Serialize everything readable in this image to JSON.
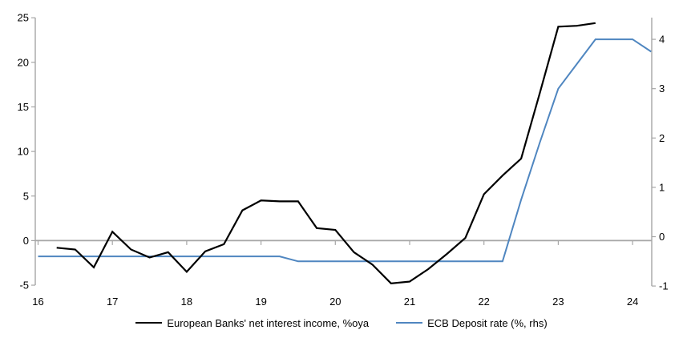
{
  "chart_data": {
    "type": "line",
    "title": "",
    "grid": "horizontal-zero-line-only",
    "legend_position": "bottom-center",
    "x_axis": {
      "ticks": [
        16,
        17,
        18,
        19,
        20,
        21,
        22,
        23,
        24
      ],
      "range": [
        15.96,
        24.26
      ]
    },
    "left_axis": {
      "ticks": [
        25,
        20,
        15,
        10,
        5,
        0,
        -5
      ],
      "range": [
        -5,
        25
      ]
    },
    "right_axis": {
      "ticks": [
        4,
        3,
        2,
        1,
        0,
        -1
      ],
      "range": [
        -1,
        4.45
      ]
    },
    "series": [
      {
        "name": "European Banks' net interest income, %oya",
        "axis": "left",
        "color": "#000000",
        "x": [
          16.25,
          16.5,
          16.75,
          17.0,
          17.25,
          17.5,
          17.75,
          18.0,
          18.25,
          18.5,
          18.75,
          19.0,
          19.25,
          19.5,
          19.75,
          20.0,
          20.25,
          20.5,
          20.75,
          21.0,
          21.25,
          21.5,
          21.75,
          22.0,
          22.25,
          22.5,
          22.75,
          23.0,
          23.25,
          23.5
        ],
        "values": [
          -0.8,
          -1.0,
          -3.0,
          1.0,
          -1.0,
          -1.9,
          -1.3,
          -3.5,
          -1.2,
          -0.4,
          3.4,
          4.5,
          4.4,
          4.4,
          1.4,
          1.2,
          -1.3,
          -2.7,
          -4.8,
          -4.6,
          -3.2,
          -1.5,
          0.3,
          5.2,
          7.3,
          9.2,
          16.5,
          24.0,
          24.1,
          24.4
        ]
      },
      {
        "name": "ECB Deposit rate (%, rhs)",
        "axis": "right",
        "color": "#4f86c0",
        "x": [
          16.0,
          16.25,
          16.5,
          16.75,
          17.0,
          17.25,
          17.5,
          17.75,
          18.0,
          18.25,
          18.5,
          18.75,
          19.0,
          19.25,
          19.5,
          19.75,
          20.0,
          20.25,
          20.5,
          20.75,
          21.0,
          21.25,
          21.5,
          21.75,
          22.0,
          22.25,
          22.5,
          22.75,
          23.0,
          23.25,
          23.5,
          23.75,
          24.0,
          24.25
        ],
        "values": [
          -0.4,
          -0.4,
          -0.4,
          -0.4,
          -0.4,
          -0.4,
          -0.4,
          -0.4,
          -0.4,
          -0.4,
          -0.4,
          -0.4,
          -0.4,
          -0.4,
          -0.5,
          -0.5,
          -0.5,
          -0.5,
          -0.5,
          -0.5,
          -0.5,
          -0.5,
          -0.5,
          -0.5,
          -0.5,
          -0.5,
          0.75,
          1.9,
          3.0,
          3.5,
          4.0,
          4.0,
          4.0,
          3.75
        ]
      }
    ],
    "legend": [
      "European Banks' net interest income, %oya",
      "ECB Deposit rate (%, rhs)"
    ]
  },
  "legend": {
    "item1": "European Banks' net interest income, %oya",
    "item2": "ECB Deposit rate (%, rhs)"
  },
  "colors": {
    "series_nii": "#000000",
    "series_ecb": "#4f86c0",
    "axis_gray": "#a6a6a6",
    "label_text": "#000000",
    "background": "#ffffff"
  }
}
